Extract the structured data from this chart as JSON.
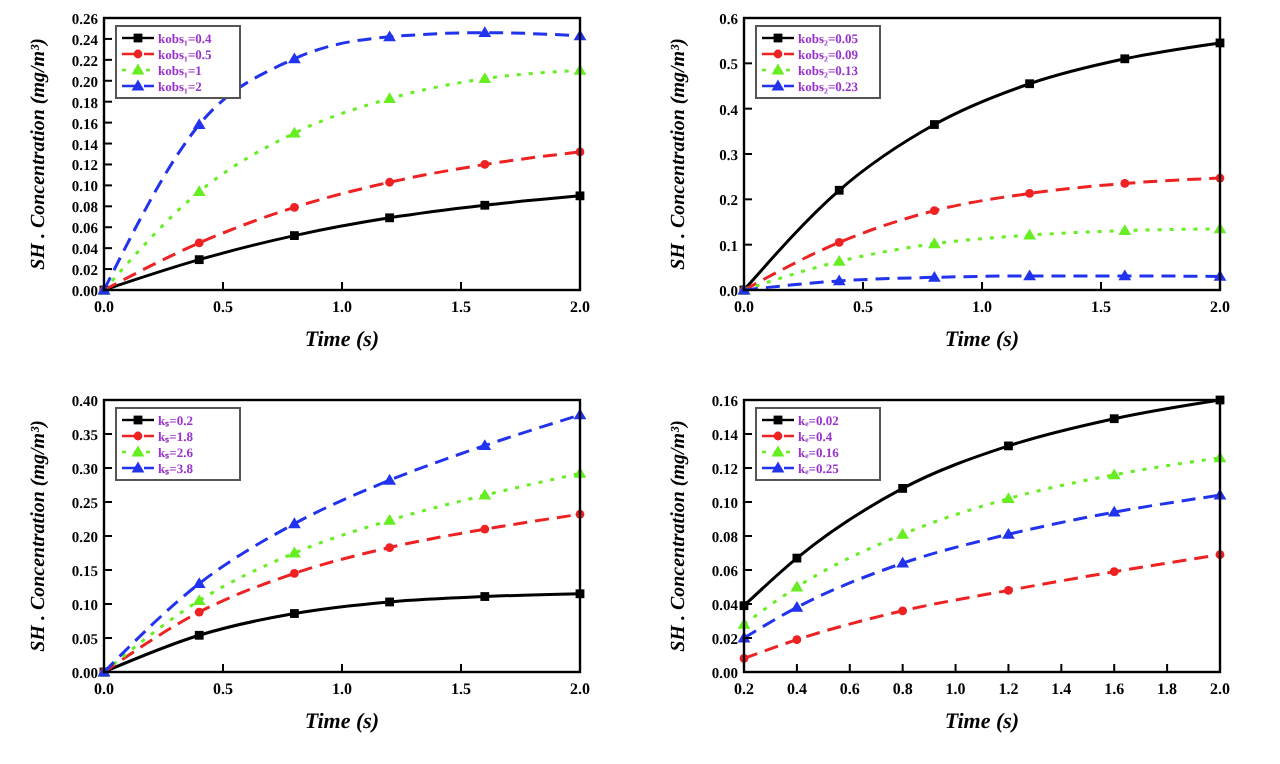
{
  "chart_data": [
    {
      "type": "line",
      "xlabel": "Time (s)",
      "ylabel": "SH . Concentration (mg/m³)",
      "x": [
        0,
        0.4,
        0.8,
        1.2,
        1.6,
        2.0
      ],
      "xlim": [
        0,
        2
      ],
      "xticks": [
        {
          "value": 0,
          "label": "0.0"
        },
        {
          "value": 0.5,
          "label": "0.5"
        },
        {
          "value": 1,
          "label": "1.0"
        },
        {
          "value": 1.5,
          "label": "1.5"
        },
        {
          "value": 2,
          "label": "2.0"
        }
      ],
      "ylim": [
        0,
        0.26
      ],
      "yticks": [
        {
          "value": 0,
          "label": "0.00"
        },
        {
          "value": 0.02,
          "label": "0.02"
        },
        {
          "value": 0.04,
          "label": "0.04"
        },
        {
          "value": 0.06,
          "label": "0.06"
        },
        {
          "value": 0.08,
          "label": "0.08"
        },
        {
          "value": 0.1,
          "label": "0.10"
        },
        {
          "value": 0.12,
          "label": "0.12"
        },
        {
          "value": 0.14,
          "label": "0.14"
        },
        {
          "value": 0.16,
          "label": "0.16"
        },
        {
          "value": 0.18,
          "label": "0.18"
        },
        {
          "value": 0.2,
          "label": "0.20"
        },
        {
          "value": 0.22,
          "label": "0.22"
        },
        {
          "value": 0.24,
          "label": "0.24"
        },
        {
          "value": 0.26,
          "label": "0.26"
        }
      ],
      "legend": "top left",
      "grid": false,
      "series": [
        {
          "name": "kobs₁=0.4",
          "color": "#000000",
          "marker": "square",
          "line_style": "solid",
          "values": [
            0,
            0.029,
            0.052,
            0.069,
            0.081,
            0.09
          ]
        },
        {
          "name": "kobs₁=0.5",
          "color": "#ee2222",
          "marker": "circle",
          "line_style": "dashed",
          "values": [
            0,
            0.045,
            0.079,
            0.103,
            0.12,
            0.132
          ]
        },
        {
          "name": "kobs₁=1",
          "color": "#66ee22",
          "marker": "triangle",
          "line_style": "dotted",
          "values": [
            0,
            0.094,
            0.15,
            0.183,
            0.202,
            0.21
          ]
        },
        {
          "name": "kobs₁=2",
          "color": "#2233ee",
          "marker": "triangle",
          "line_style": "dashed",
          "values": [
            0,
            0.158,
            0.221,
            0.242,
            0.246,
            0.243
          ]
        }
      ]
    },
    {
      "type": "line",
      "xlabel": "Time (s)",
      "ylabel": "SH . Concentration (mg/m³)",
      "x": [
        0,
        0.4,
        0.8,
        1.2,
        1.6,
        2.0
      ],
      "xlim": [
        0,
        2
      ],
      "xticks": [
        {
          "value": 0,
          "label": "0.0"
        },
        {
          "value": 0.5,
          "label": "0.5"
        },
        {
          "value": 1,
          "label": "1.0"
        },
        {
          "value": 1.5,
          "label": "1.5"
        },
        {
          "value": 2,
          "label": "2.0"
        }
      ],
      "ylim": [
        0,
        0.6
      ],
      "yticks": [
        {
          "value": 0,
          "label": "0.0"
        },
        {
          "value": 0.1,
          "label": "0.1"
        },
        {
          "value": 0.2,
          "label": "0.2"
        },
        {
          "value": 0.3,
          "label": "0.3"
        },
        {
          "value": 0.4,
          "label": "0.4"
        },
        {
          "value": 0.5,
          "label": "0.5"
        },
        {
          "value": 0.6,
          "label": "0.6"
        }
      ],
      "legend": "top left",
      "grid": false,
      "series": [
        {
          "name": "kobs₂=0.05",
          "color": "#000000",
          "marker": "square",
          "line_style": "solid",
          "values": [
            0,
            0.22,
            0.365,
            0.455,
            0.51,
            0.545
          ]
        },
        {
          "name": "kobs₂=0.09",
          "color": "#ee2222",
          "marker": "circle",
          "line_style": "dashed",
          "values": [
            0,
            0.105,
            0.175,
            0.213,
            0.235,
            0.247
          ]
        },
        {
          "name": "kobs₂=0.13",
          "color": "#66ee22",
          "marker": "triangle",
          "line_style": "dotted",
          "values": [
            0,
            0.063,
            0.102,
            0.121,
            0.131,
            0.135
          ]
        },
        {
          "name": "kobs₂=0.23",
          "color": "#2233ee",
          "marker": "triangle",
          "line_style": "dashed",
          "values": [
            0,
            0.02,
            0.028,
            0.031,
            0.031,
            0.03
          ]
        }
      ]
    },
    {
      "type": "line",
      "xlabel": "Time (s)",
      "ylabel": "SH . Concentration (mg/m³)",
      "x": [
        0,
        0.4,
        0.8,
        1.2,
        1.6,
        2.0
      ],
      "xlim": [
        0,
        2
      ],
      "xticks": [
        {
          "value": 0,
          "label": "0.0"
        },
        {
          "value": 0.5,
          "label": "0.5"
        },
        {
          "value": 1,
          "label": "1.0"
        },
        {
          "value": 1.5,
          "label": "1.5"
        },
        {
          "value": 2,
          "label": "2.0"
        }
      ],
      "ylim": [
        0,
        0.4
      ],
      "yticks": [
        {
          "value": 0,
          "label": "0.00"
        },
        {
          "value": 0.05,
          "label": "0.05"
        },
        {
          "value": 0.1,
          "label": "0.10"
        },
        {
          "value": 0.15,
          "label": "0.15"
        },
        {
          "value": 0.2,
          "label": "0.20"
        },
        {
          "value": 0.25,
          "label": "0.25"
        },
        {
          "value": 0.3,
          "label": "0.30"
        },
        {
          "value": 0.35,
          "label": "0.35"
        },
        {
          "value": 0.4,
          "label": "0.40"
        }
      ],
      "legend": "top left",
      "grid": false,
      "series": [
        {
          "name": "kₛ=0.2",
          "color": "#000000",
          "marker": "square",
          "line_style": "solid",
          "values": [
            0,
            0.054,
            0.086,
            0.103,
            0.111,
            0.115
          ]
        },
        {
          "name": "kₛ=1.8",
          "color": "#ee2222",
          "marker": "circle",
          "line_style": "dashed",
          "values": [
            0,
            0.088,
            0.145,
            0.183,
            0.21,
            0.232
          ]
        },
        {
          "name": "kₛ=2.6",
          "color": "#66ee22",
          "marker": "triangle",
          "line_style": "dotted",
          "values": [
            0,
            0.105,
            0.175,
            0.223,
            0.26,
            0.292
          ]
        },
        {
          "name": "kₛ=3.8",
          "color": "#2233ee",
          "marker": "triangle",
          "line_style": "dashed",
          "values": [
            0,
            0.13,
            0.218,
            0.282,
            0.333,
            0.378
          ]
        }
      ]
    },
    {
      "type": "line",
      "xlabel": "Time (s)",
      "ylabel": "SH . Concentration (mg/m³)",
      "x": [
        0.2,
        0.4,
        0.8,
        1.2,
        1.6,
        2.0
      ],
      "xlim": [
        0.2,
        2
      ],
      "xticks": [
        {
          "value": 0.2,
          "label": "0.2"
        },
        {
          "value": 0.4,
          "label": "0.4"
        },
        {
          "value": 0.6,
          "label": "0.6"
        },
        {
          "value": 0.8,
          "label": "0.8"
        },
        {
          "value": 1,
          "label": "1.0"
        },
        {
          "value": 1.2,
          "label": "1.2"
        },
        {
          "value": 1.4,
          "label": "1.4"
        },
        {
          "value": 1.6,
          "label": "1.6"
        },
        {
          "value": 1.8,
          "label": "1.8"
        },
        {
          "value": 2,
          "label": "2.0"
        }
      ],
      "ylim": [
        0,
        0.16
      ],
      "yticks": [
        {
          "value": 0,
          "label": "0.00"
        },
        {
          "value": 0.02,
          "label": "0.02"
        },
        {
          "value": 0.04,
          "label": "0.04"
        },
        {
          "value": 0.06,
          "label": "0.06"
        },
        {
          "value": 0.08,
          "label": "0.08"
        },
        {
          "value": 0.1,
          "label": "0.10"
        },
        {
          "value": 0.12,
          "label": "0.12"
        },
        {
          "value": 0.14,
          "label": "0.14"
        },
        {
          "value": 0.16,
          "label": "0.16"
        }
      ],
      "legend": "top left",
      "grid": false,
      "series": [
        {
          "name": "kₑ=0.02",
          "color": "#000000",
          "marker": "square",
          "line_style": "solid",
          "values": [
            0.039,
            0.067,
            0.108,
            0.133,
            0.149,
            0.16
          ]
        },
        {
          "name": "kₑ=0.4",
          "color": "#ee2222",
          "marker": "circle",
          "line_style": "dashed",
          "values": [
            0.008,
            0.019,
            0.036,
            0.048,
            0.059,
            0.069
          ]
        },
        {
          "name": "kₑ=0.16",
          "color": "#66ee22",
          "marker": "triangle",
          "line_style": "dotted",
          "values": [
            0.028,
            0.05,
            0.081,
            0.102,
            0.116,
            0.126
          ]
        },
        {
          "name": "kₑ=0.25",
          "color": "#2233ee",
          "marker": "triangle",
          "line_style": "dashed",
          "values": [
            0.02,
            0.038,
            0.064,
            0.081,
            0.094,
            0.104
          ]
        }
      ]
    }
  ]
}
